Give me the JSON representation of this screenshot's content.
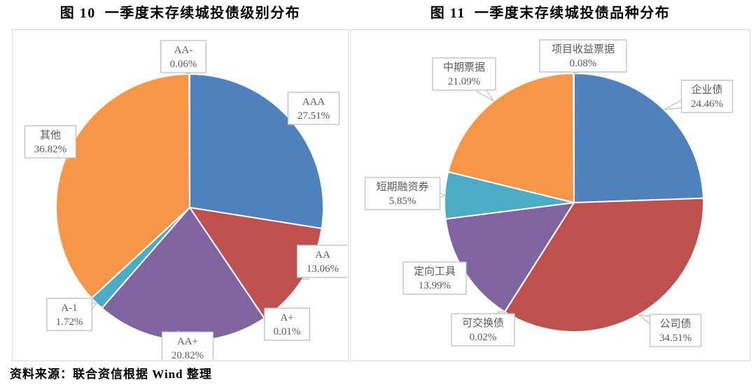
{
  "chart_data": [
    {
      "type": "pie",
      "title": "图 10  一季度末存续城投债级别分布",
      "categories": [
        "AAA",
        "AA",
        "A+",
        "AA+",
        "A-1",
        "其他",
        "AA-"
      ],
      "values": [
        27.51,
        13.06,
        0.01,
        20.82,
        1.72,
        36.82,
        0.06
      ],
      "unit": "%",
      "slice_colors": [
        "#4F81BD",
        "#C0504D",
        "#9BBB59",
        "#8064A2",
        "#4BACC6",
        "#F79646",
        "#2C4D75"
      ],
      "legend_style": "callout-labels",
      "label_format": "name + percent",
      "start_angle": "12 o'clock, clockwise"
    },
    {
      "type": "pie",
      "title": "图 11  一季度末存续城投债品种分布",
      "categories": [
        "企业债",
        "公司债",
        "可交换债",
        "定向工具",
        "短期融资券",
        "中期票据",
        "项目收益票据"
      ],
      "values": [
        24.46,
        34.51,
        0.02,
        13.99,
        5.85,
        21.09,
        0.08
      ],
      "unit": "%",
      "slice_colors": [
        "#4F81BD",
        "#C0504D",
        "#9BBB59",
        "#8064A2",
        "#4BACC6",
        "#F79646",
        "#2C4D75"
      ],
      "legend_style": "callout-labels",
      "label_format": "name + percent",
      "start_angle": "12 o'clock, clockwise"
    }
  ],
  "source_note": "资料来源：联合资信根据 Wind 整理",
  "styles": {
    "panel_border_color": "#d9d9d9",
    "callout_border_color": "#bfbfbf",
    "callout_text_color": "#595959"
  }
}
